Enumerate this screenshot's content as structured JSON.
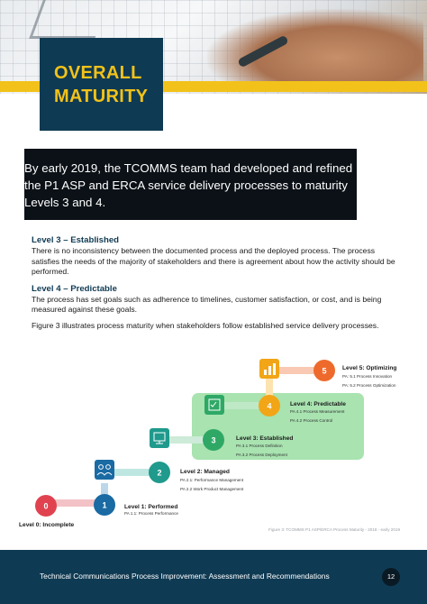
{
  "title": {
    "line1": "OVERALL",
    "line2": "MATURITY"
  },
  "intro_text": "By early 2019, the TCOMMS team had developed and refined the P1 ASP and ERCA service delivery processes to maturity Levels 3 and 4.",
  "sections": [
    {
      "heading": "Level 3 – Established",
      "body": "There is no inconsistency between the documented process and the deployed process. The process satisfies the needs of the majority of stakeholders and there is agreement about how the activity should be performed."
    },
    {
      "heading": "Level 4 – Predictable",
      "body": "The process has set goals such as adherence to timelines, customer satisfaction, or cost, and is being measured against these goals."
    }
  ],
  "figure_intro": "Figure 3 illustrates process maturity when stakeholders follow established service delivery processes.",
  "diagram": {
    "levels": [
      {
        "num": "0",
        "title": "Level 0: Incomplete",
        "items": [],
        "color": "#e0434f"
      },
      {
        "num": "1",
        "title": "Level 1: Performed",
        "items": [
          "PA 1.1: Process Performance"
        ],
        "color": "#1a6aa3"
      },
      {
        "num": "2",
        "title": "Level 2: Managed",
        "items": [
          "PA 2.1: Performance Management",
          "PA 2.2 Work Product Management"
        ],
        "color": "#1f9a8c"
      },
      {
        "num": "3",
        "title": "Level 3: Established",
        "items": [
          "PA 3.1 Process Definition",
          "PA 3.2 Process Deployment"
        ],
        "color": "#2fa866"
      },
      {
        "num": "4",
        "title": "Level 4: Predictable",
        "items": [
          "PA 4.1 Process Measurement",
          "PA 4.2 Process Control"
        ],
        "color": "#f2a516"
      },
      {
        "num": "5",
        "title": "Level 5: Optimizing",
        "items": [
          "PA: 5.1 Process Innovation",
          "PA: 5.2 Process Optimization"
        ],
        "color": "#ee6a2c"
      }
    ],
    "highlight_color": "#a8e3b0"
  },
  "caption": "Figure 3: TCOMMS P1 ASP/ERCA Process Maturity - 2018 - early 2019",
  "footer": {
    "text": "Technical Communications Process Improvement: Assessment and Recommendations",
    "page": "12"
  }
}
